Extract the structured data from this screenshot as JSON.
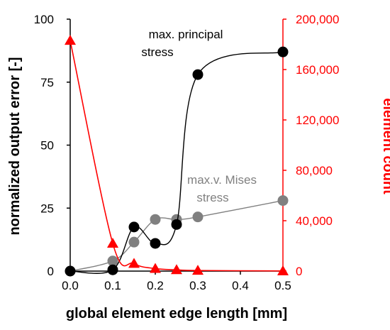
{
  "chart_data": {
    "type": "scatter",
    "xlabel": "global element edge length [mm]",
    "ylabel": "normalized output error [-]",
    "y2label": "element count",
    "xlim": [
      0.0,
      0.5
    ],
    "ylim": [
      0,
      100
    ],
    "y2lim": [
      0,
      200000
    ],
    "xticks": [
      "0.0",
      "0.1",
      "0.2",
      "0.3",
      "0.4",
      "0.5"
    ],
    "yticks": [
      "0",
      "25",
      "50",
      "75",
      "100"
    ],
    "y2ticks": [
      "0",
      "40,000",
      "80,000",
      "120,000",
      "160,000",
      "200,000"
    ],
    "grid": false,
    "colors": {
      "principal": "#000000",
      "mises": "#808080",
      "count": "#ff0000"
    },
    "series": [
      {
        "name": "max. principal stress",
        "axis": "left",
        "marker": "circle",
        "color": "#000000",
        "x": [
          0.0,
          0.1,
          0.15,
          0.2,
          0.25,
          0.3,
          0.5
        ],
        "y": [
          0,
          0.5,
          17.5,
          11,
          18.5,
          78,
          87
        ]
      },
      {
        "name": "max.v. Mises stress",
        "axis": "left",
        "marker": "circle",
        "color": "#808080",
        "x": [
          0.0,
          0.1,
          0.15,
          0.2,
          0.25,
          0.3,
          0.5
        ],
        "y": [
          0,
          4,
          11.5,
          20.5,
          20.5,
          21.5,
          28
        ]
      },
      {
        "name": "element count",
        "axis": "right",
        "marker": "triangle",
        "color": "#ff0000",
        "x": [
          0.0,
          0.1,
          0.15,
          0.2,
          0.25,
          0.3,
          0.5
        ],
        "y": [
          183000,
          22000,
          6000,
          2000,
          1000,
          500,
          100
        ]
      }
    ],
    "annotations": [
      {
        "series": "max. principal stress",
        "lines": [
          "max. principal",
          "stress"
        ]
      },
      {
        "series": "max.v. Mises stress",
        "lines": [
          "max.v. Mises",
          "stress"
        ]
      }
    ]
  }
}
